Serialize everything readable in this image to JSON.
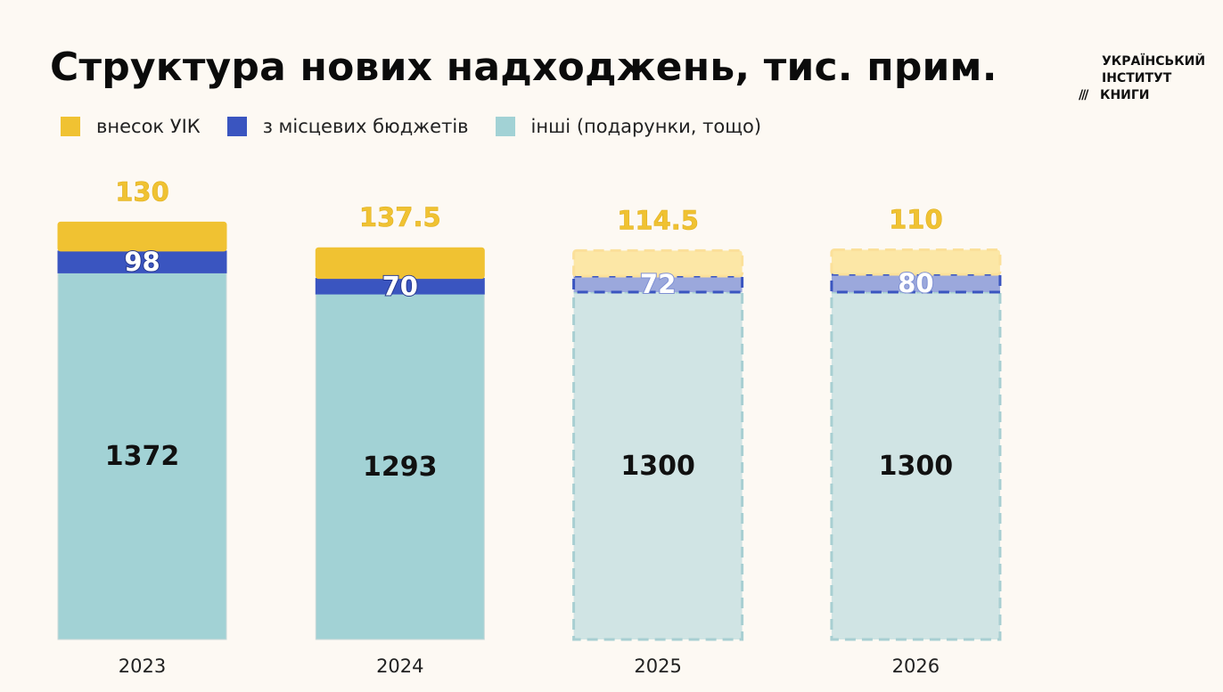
{
  "title": "Структура нових надходжень, тис. прим.",
  "logo": {
    "line1": "УКРАЇНСЬКИЙ",
    "line2": "ІНСТИТУТ",
    "line3_mark": "///",
    "line3": "КНИГИ"
  },
  "colors": {
    "uik": "#f0c232",
    "local": "#3a55c0",
    "other": "#a2d2d5",
    "uik_projected": "#fce7a6",
    "local_projected": "#9ba8dc",
    "other_projected": "#d0e4e4",
    "total_label": "#f0c232"
  },
  "chart_data": {
    "type": "bar",
    "stacked": true,
    "categories": [
      "2023",
      "2024",
      "2025",
      "2026"
    ],
    "projected": [
      false,
      false,
      true,
      true
    ],
    "series": [
      {
        "name": "інші (подарунки, тощо)",
        "values": [
          1372,
          1293,
          1300,
          1300
        ]
      },
      {
        "name": "з місцевих бюджетів",
        "values": [
          98,
          70,
          72,
          80
        ]
      },
      {
        "name": "внесок УІК",
        "values": [
          130,
          137.5,
          114.5,
          110
        ]
      }
    ],
    "data_labels": {
      "other": [
        "1372",
        "1293",
        "1300",
        "1300"
      ],
      "local": [
        "98",
        "70",
        "72",
        "80"
      ],
      "uik": [
        "130",
        "137.5",
        "114.5",
        "110"
      ]
    },
    "legend": [
      "внесок УІК",
      "з місцевих бюджетів",
      "інші (подарунки, тощо)"
    ],
    "legend_position": "top-left",
    "grid": false,
    "xlabel": "",
    "ylabel": ""
  }
}
